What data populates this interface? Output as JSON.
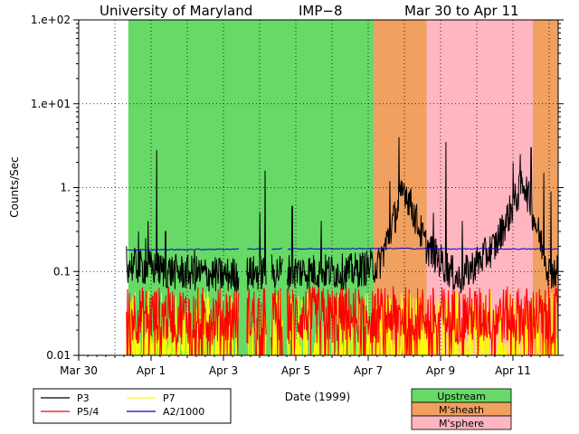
{
  "chart_data": {
    "type": "line",
    "title": "University of Maryland        IMP-8        Mar 30 to Apr 11",
    "title_parts": [
      "University of Maryland",
      "IMP−8",
      "Mar 30 to Apr 11"
    ],
    "xlabel": "Date (1999)",
    "ylabel": "Counts/Sec",
    "yscale": "log",
    "ylim": [
      0.01,
      100
    ],
    "xlim": [
      0,
      13.25
    ],
    "x_unit": "days since Mar 30 00:00 UT",
    "x_ticks": [
      {
        "value": 0,
        "label": "Mar 30"
      },
      {
        "value": 2,
        "label": "Apr 1"
      },
      {
        "value": 4,
        "label": "Apr 3"
      },
      {
        "value": 6,
        "label": "Apr 5"
      },
      {
        "value": 8,
        "label": "Apr 7"
      },
      {
        "value": 10,
        "label": "Apr 9"
      },
      {
        "value": 12,
        "label": "Apr 11"
      }
    ],
    "y_ticks": [
      {
        "value": 100,
        "label": "1.e+02"
      },
      {
        "value": 10,
        "label": "1.e+01"
      },
      {
        "value": 1,
        "label": "1."
      },
      {
        "value": 0.1,
        "label": "0.1"
      },
      {
        "value": 0.01,
        "label": "0.01"
      }
    ],
    "grid": true,
    "regions": [
      {
        "name": "Upstream",
        "color": "#66d966",
        "ranges": [
          [
            1.37,
            8.16
          ]
        ]
      },
      {
        "name": "M'sheath",
        "color": "#f0a060",
        "ranges": [
          [
            8.16,
            9.62
          ],
          [
            12.55,
            13.25
          ]
        ]
      },
      {
        "name": "M'sphere",
        "color": "#ffb6c1",
        "ranges": [
          [
            9.62,
            12.55
          ]
        ]
      }
    ],
    "data_gaps": [
      [
        0,
        1.32
      ],
      [
        4.43,
        4.64
      ],
      [
        5.18,
        5.32
      ],
      [
        5.64,
        5.75
      ]
    ],
    "series": [
      {
        "name": "P3",
        "color": "#000000",
        "typical": 0.095,
        "spikes": [
          [
            1.32,
            0.2
          ],
          [
            1.65,
            0.3
          ],
          [
            1.85,
            0.25
          ],
          [
            1.92,
            0.4
          ],
          [
            2.15,
            2.8
          ],
          [
            2.4,
            0.3
          ],
          [
            3.2,
            0.18
          ],
          [
            4.6,
            0.18
          ],
          [
            5.0,
            0.5
          ],
          [
            5.15,
            1.6
          ],
          [
            5.9,
            0.6
          ],
          [
            6.7,
            0.4
          ],
          [
            8.6,
            1.2
          ],
          [
            8.85,
            4.0
          ],
          [
            9.15,
            0.9
          ],
          [
            9.8,
            0.5
          ],
          [
            10.15,
            3.5
          ],
          [
            10.6,
            0.4
          ],
          [
            12.0,
            2.0
          ],
          [
            12.2,
            2.5
          ],
          [
            12.5,
            3.0
          ],
          [
            12.85,
            1.5
          ],
          [
            13.05,
            0.9
          ]
        ],
        "values": [
          [
            1.35,
            0.12
          ],
          [
            2.5,
            0.1
          ],
          [
            4.0,
            0.09
          ],
          [
            5.5,
            0.1
          ],
          [
            7.5,
            0.1
          ],
          [
            8.3,
            0.12
          ],
          [
            9.0,
            1.0
          ],
          [
            9.6,
            0.2
          ],
          [
            10.5,
            0.08
          ],
          [
            11.5,
            0.2
          ],
          [
            12.3,
            1.2
          ],
          [
            13.0,
            0.1
          ]
        ]
      },
      {
        "name": "P5/4",
        "color": "#ff0000",
        "typical": 0.03
      },
      {
        "name": "P7",
        "color": "#ffff00",
        "typical": 0.018
      },
      {
        "name": "A2/1000",
        "color": "#0000cc",
        "values": [
          [
            1.32,
            0.18
          ],
          [
            4.43,
            0.185
          ],
          [
            5.75,
            0.186
          ],
          [
            9.0,
            0.188
          ],
          [
            10.5,
            0.186
          ],
          [
            13.25,
            0.185
          ]
        ]
      }
    ],
    "legend": [
      {
        "name": "P3",
        "color": "#000000"
      },
      {
        "name": "P7",
        "color": "#ffff00"
      },
      {
        "name": "P5/4",
        "color": "#ff0000"
      },
      {
        "name": "A2/1000",
        "color": "#0000cc"
      }
    ],
    "region_legend": [
      {
        "name": "Upstream",
        "color": "#66d966"
      },
      {
        "name": "M'sheath",
        "color": "#f0a060"
      },
      {
        "name": "M'sphere",
        "color": "#ffb6c1"
      }
    ]
  }
}
